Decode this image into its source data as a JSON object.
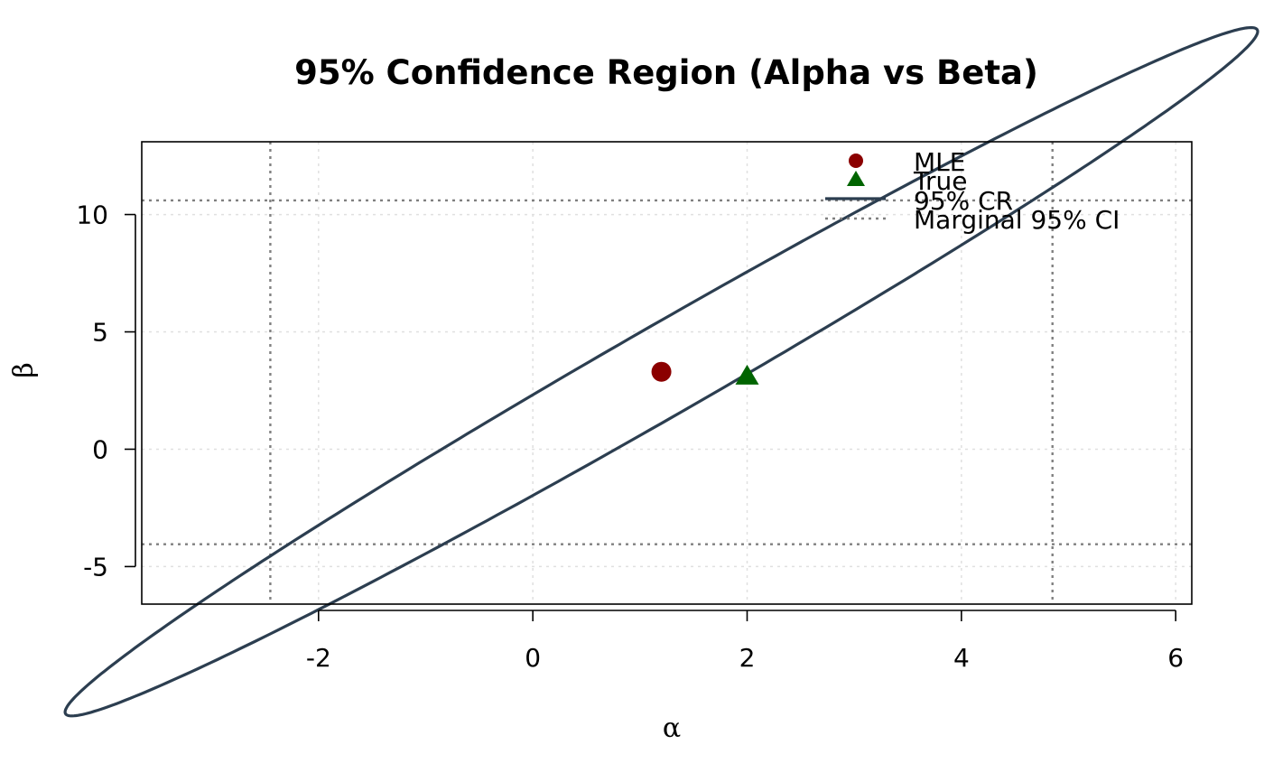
{
  "chart_data": {
    "type": "scatter",
    "title": "95% Confidence Region (Alpha vs Beta)",
    "xlabel": "α",
    "ylabel": "β",
    "xlim": [
      -3.65,
      6.15
    ],
    "ylim": [
      -6.6,
      13.1
    ],
    "x_ticks": [
      -2,
      0,
      2,
      4,
      6
    ],
    "y_ticks": [
      -5,
      0,
      5,
      10
    ],
    "x_tick_labels": [
      "-2",
      "0",
      "2",
      "4",
      "6"
    ],
    "y_tick_labels": [
      "-5",
      "0",
      "5",
      "10"
    ],
    "grid": true,
    "legend_position": "top-right",
    "mle": {
      "alpha": 1.2,
      "beta": 3.3
    },
    "true_value": {
      "alpha": 2.0,
      "beta": 3.1
    },
    "confidence_region": {
      "center": [
        1.2,
        3.3
      ],
      "var_alpha": 5.17,
      "var_beta": 35.9,
      "cov_alpha_beta": 13.47,
      "level": 0.95
    },
    "marginal_ci": {
      "alpha": [
        -2.45,
        4.85
      ],
      "beta": [
        -4.05,
        10.6
      ]
    },
    "series": [
      {
        "name": "MLE",
        "color": "#8b0000",
        "marker": "circle"
      },
      {
        "name": "True",
        "color": "#006400",
        "marker": "triangle"
      },
      {
        "name": "95% CR",
        "color": "#2c3e50",
        "line": "solid"
      },
      {
        "name": "Marginal 95% CI",
        "color": "#808080",
        "line": "dotted"
      }
    ]
  }
}
